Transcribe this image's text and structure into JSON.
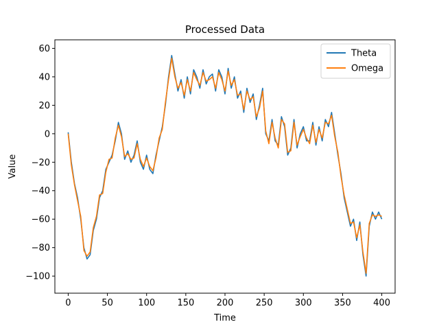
{
  "chart_data": {
    "type": "line",
    "title": "Processed Data",
    "xlabel": "Time",
    "ylabel": "Value",
    "xlim": [
      -17,
      417
    ],
    "ylim": [
      -112,
      66
    ],
    "xticks": [
      0,
      50,
      100,
      150,
      200,
      250,
      300,
      350,
      400
    ],
    "yticks": [
      -100,
      -80,
      -60,
      -40,
      -20,
      0,
      20,
      40,
      60
    ],
    "xtick_labels": [
      "0",
      "50",
      "100",
      "150",
      "200",
      "250",
      "300",
      "350",
      "400"
    ],
    "ytick_labels": [
      "−100",
      "−80",
      "−60",
      "−40",
      "−20",
      "0",
      "20",
      "40",
      "60"
    ],
    "legend_position": "top-right",
    "grid": false,
    "series": [
      {
        "name": "Theta",
        "color": "#1f77b4",
        "x": [
          0,
          4,
          8,
          12,
          16,
          20,
          24,
          28,
          32,
          36,
          40,
          44,
          48,
          52,
          56,
          60,
          64,
          68,
          72,
          76,
          80,
          84,
          88,
          92,
          96,
          100,
          104,
          108,
          112,
          116,
          120,
          124,
          128,
          132,
          136,
          140,
          144,
          148,
          152,
          156,
          160,
          164,
          168,
          172,
          176,
          180,
          184,
          188,
          192,
          196,
          200,
          204,
          208,
          212,
          216,
          220,
          224,
          228,
          232,
          236,
          240,
          244,
          248,
          252,
          256,
          260,
          264,
          268,
          272,
          276,
          280,
          284,
          288,
          292,
          296,
          300,
          304,
          308,
          312,
          316,
          320,
          324,
          328,
          332,
          336,
          340,
          344,
          348,
          352,
          356,
          360,
          364,
          368,
          372,
          376,
          380,
          384,
          388,
          392,
          396,
          400
        ],
        "y": [
          1,
          -20,
          -35,
          -45,
          -60,
          -80,
          -88,
          -85,
          -68,
          -60,
          -45,
          -40,
          -25,
          -20,
          -15,
          -5,
          8,
          0,
          -18,
          -12,
          -20,
          -15,
          -5,
          -20,
          -25,
          -15,
          -25,
          -28,
          -15,
          -5,
          5,
          20,
          40,
          55,
          42,
          30,
          38,
          25,
          40,
          28,
          45,
          40,
          32,
          45,
          35,
          40,
          42,
          30,
          45,
          40,
          28,
          46,
          32,
          40,
          25,
          30,
          15,
          32,
          22,
          28,
          10,
          20,
          32,
          0,
          -5,
          10,
          -5,
          -8,
          12,
          5,
          -15,
          -10,
          10,
          -10,
          0,
          5,
          -5,
          -5,
          8,
          -8,
          5,
          -5,
          10,
          5,
          15,
          0,
          -15,
          -28,
          -45,
          -55,
          -65,
          -60,
          -75,
          -62,
          -85,
          -100,
          -65,
          -55,
          -60,
          -55,
          -60
        ]
      },
      {
        "name": "Omega",
        "color": "#ff7f0e",
        "x": [
          0,
          4,
          8,
          12,
          16,
          20,
          24,
          28,
          32,
          36,
          40,
          44,
          48,
          52,
          56,
          60,
          64,
          68,
          72,
          76,
          80,
          84,
          88,
          92,
          96,
          100,
          104,
          108,
          112,
          116,
          120,
          124,
          128,
          132,
          136,
          140,
          144,
          148,
          152,
          156,
          160,
          164,
          168,
          172,
          176,
          180,
          184,
          188,
          192,
          196,
          200,
          204,
          208,
          212,
          216,
          220,
          224,
          228,
          232,
          236,
          240,
          244,
          248,
          252,
          256,
          260,
          264,
          268,
          272,
          276,
          280,
          284,
          288,
          292,
          296,
          300,
          304,
          308,
          312,
          316,
          320,
          324,
          328,
          332,
          336,
          340,
          344,
          348,
          352,
          356,
          360,
          364,
          368,
          372,
          376,
          380,
          384,
          388,
          392,
          396,
          400
        ],
        "y": [
          0,
          -22,
          -36,
          -47,
          -58,
          -82,
          -86,
          -83,
          -66,
          -58,
          -43,
          -42,
          -27,
          -18,
          -17,
          -3,
          6,
          -2,
          -16,
          -14,
          -18,
          -17,
          -7,
          -18,
          -23,
          -17,
          -23,
          -26,
          -17,
          -3,
          3,
          22,
          38,
          53,
          40,
          32,
          36,
          27,
          38,
          30,
          43,
          38,
          34,
          43,
          37,
          38,
          40,
          32,
          43,
          38,
          30,
          44,
          34,
          38,
          27,
          28,
          17,
          30,
          24,
          26,
          12,
          18,
          30,
          2,
          -7,
          8,
          -3,
          -10,
          10,
          7,
          -13,
          -12,
          8,
          -8,
          -2,
          3,
          -3,
          -7,
          6,
          -6,
          3,
          -3,
          8,
          7,
          13,
          -2,
          -13,
          -30,
          -43,
          -53,
          -63,
          -62,
          -73,
          -64,
          -83,
          -98,
          -63,
          -57,
          -58,
          -57,
          -58
        ]
      }
    ]
  }
}
